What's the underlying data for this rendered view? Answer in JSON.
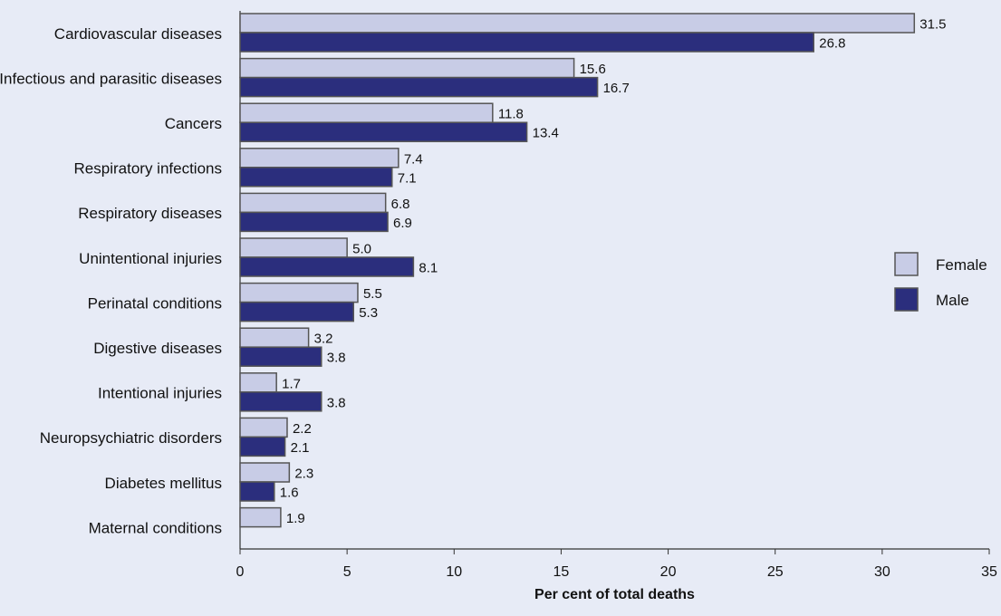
{
  "chart_data": {
    "type": "bar",
    "orientation": "horizontal",
    "categories": [
      "Cardiovascular diseases",
      "Infectious and parasitic diseases",
      "Cancers",
      "Respiratory infections",
      "Respiratory diseases",
      "Unintentional injuries",
      "Perinatal conditions",
      "Digestive diseases",
      "Intentional injuries",
      "Neuropsychiatric disorders",
      "Diabetes mellitus",
      "Maternal conditions"
    ],
    "series": [
      {
        "name": "Female",
        "color": "#c8cce6",
        "values": [
          31.5,
          15.6,
          11.8,
          7.4,
          6.8,
          5.0,
          5.5,
          3.2,
          1.7,
          2.2,
          2.3,
          1.9
        ],
        "labels": [
          "31.5",
          "15.6",
          "11.8",
          "7.4",
          "6.8",
          "5.0",
          "5.5",
          "3.2",
          "1.7",
          "2.2",
          "2.3",
          "1.9"
        ]
      },
      {
        "name": "Male",
        "color": "#2b2e7d",
        "values": [
          26.8,
          16.7,
          13.4,
          7.1,
          6.9,
          8.1,
          5.3,
          3.8,
          3.8,
          2.1,
          1.6,
          null
        ],
        "labels": [
          "26.8",
          "16.7",
          "13.4",
          "7.1",
          "6.9",
          "8.1",
          "5.3",
          "3.8",
          "3.8",
          "2.1",
          "1.6",
          ""
        ]
      }
    ],
    "xlabel": "Per cent of total deaths",
    "ylabel": "",
    "title": "",
    "xlim": [
      0,
      35
    ],
    "xticks": [
      "0",
      "5",
      "10",
      "15",
      "20",
      "25",
      "30",
      "35"
    ],
    "grid": false,
    "legend_position": "right"
  }
}
